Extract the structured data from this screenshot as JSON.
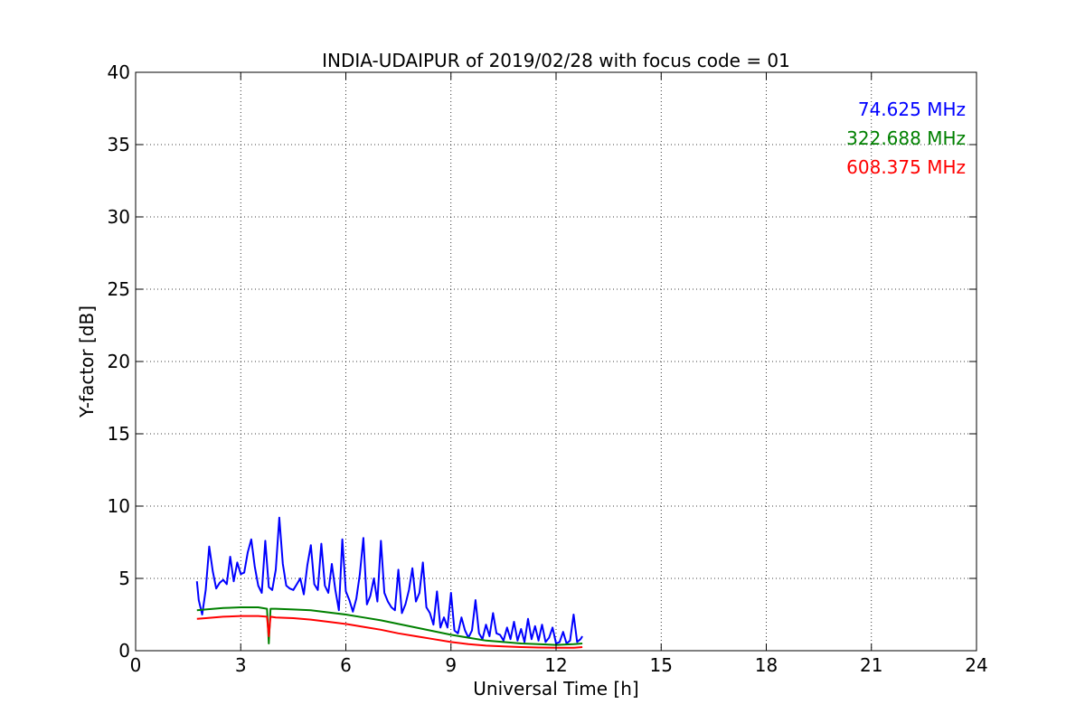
{
  "chart_data": {
    "type": "line",
    "title": "INDIA-UDAIPUR of 2019/02/28 with focus code = 01",
    "xlabel": "Universal Time [h]",
    "ylabel": "Y-factor [dB]",
    "xlim": [
      0,
      24
    ],
    "ylim": [
      0,
      40
    ],
    "xticks": [
      0,
      3,
      6,
      9,
      12,
      15,
      18,
      21,
      24
    ],
    "yticks": [
      0,
      5,
      10,
      15,
      20,
      25,
      30,
      35,
      40
    ],
    "grid": true,
    "legend_position": "top-right",
    "series": [
      {
        "name": "74.625 MHz",
        "color": "#0000ff",
        "x": [
          1.75,
          1.8,
          1.9,
          2.0,
          2.1,
          2.2,
          2.3,
          2.4,
          2.5,
          2.6,
          2.7,
          2.8,
          2.9,
          3.0,
          3.1,
          3.2,
          3.3,
          3.4,
          3.5,
          3.6,
          3.7,
          3.8,
          3.9,
          4.0,
          4.1,
          4.2,
          4.3,
          4.4,
          4.5,
          4.6,
          4.7,
          4.8,
          4.9,
          5.0,
          5.1,
          5.2,
          5.3,
          5.4,
          5.5,
          5.6,
          5.7,
          5.8,
          5.9,
          6.0,
          6.1,
          6.2,
          6.3,
          6.4,
          6.5,
          6.6,
          6.7,
          6.8,
          6.9,
          7.0,
          7.1,
          7.2,
          7.3,
          7.4,
          7.5,
          7.6,
          7.7,
          7.8,
          7.9,
          8.0,
          8.1,
          8.2,
          8.3,
          8.4,
          8.5,
          8.6,
          8.7,
          8.8,
          8.9,
          9.0,
          9.1,
          9.2,
          9.3,
          9.4,
          9.5,
          9.6,
          9.7,
          9.8,
          9.9,
          10.0,
          10.1,
          10.2,
          10.3,
          10.4,
          10.5,
          10.6,
          10.7,
          10.8,
          10.9,
          11.0,
          11.1,
          11.2,
          11.3,
          11.4,
          11.5,
          11.6,
          11.7,
          11.8,
          11.9,
          12.0,
          12.1,
          12.2,
          12.3,
          12.4,
          12.5,
          12.6,
          12.7,
          12.75
        ],
        "values": [
          4.8,
          3.5,
          2.5,
          4.2,
          7.2,
          5.5,
          4.3,
          4.7,
          4.9,
          4.6,
          6.5,
          4.8,
          6.1,
          5.3,
          5.4,
          6.8,
          7.7,
          5.8,
          4.5,
          4.0,
          7.6,
          4.4,
          4.2,
          5.6,
          9.2,
          6.0,
          4.5,
          4.3,
          4.2,
          4.6,
          5.0,
          3.9,
          5.9,
          7.3,
          4.6,
          4.2,
          7.4,
          4.5,
          4.0,
          6.0,
          4.2,
          2.8,
          7.7,
          4.1,
          3.5,
          2.7,
          3.6,
          5.3,
          7.8,
          3.2,
          3.8,
          5.0,
          3.4,
          7.6,
          4.0,
          3.4,
          3.0,
          2.8,
          5.6,
          2.6,
          3.2,
          4.2,
          5.7,
          3.4,
          4.0,
          6.1,
          3.0,
          2.6,
          1.8,
          4.1,
          1.6,
          2.3,
          1.6,
          4.0,
          1.4,
          1.2,
          2.3,
          1.4,
          0.9,
          1.4,
          3.5,
          1.2,
          0.8,
          1.8,
          1.0,
          2.6,
          1.2,
          1.1,
          0.7,
          1.6,
          0.8,
          2.0,
          0.7,
          1.5,
          0.6,
          2.2,
          0.8,
          1.7,
          0.7,
          1.8,
          0.6,
          0.9,
          1.6,
          0.5,
          0.6,
          1.3,
          0.5,
          0.7,
          2.5,
          0.6,
          0.8,
          1.0
        ]
      },
      {
        "name": "322.688 MHz",
        "color": "#008000",
        "x": [
          1.75,
          2.0,
          2.5,
          3.0,
          3.5,
          3.75,
          3.8,
          3.85,
          4.0,
          4.5,
          5.0,
          5.5,
          6.0,
          6.5,
          7.0,
          7.5,
          8.0,
          8.5,
          9.0,
          9.5,
          10.0,
          10.5,
          11.0,
          11.5,
          12.0,
          12.5,
          12.75
        ],
        "values": [
          2.8,
          2.85,
          2.95,
          3.0,
          3.0,
          2.9,
          0.5,
          2.9,
          2.9,
          2.85,
          2.8,
          2.65,
          2.5,
          2.3,
          2.1,
          1.85,
          1.6,
          1.35,
          1.1,
          0.9,
          0.7,
          0.6,
          0.5,
          0.45,
          0.4,
          0.45,
          0.5
        ]
      },
      {
        "name": "608.375 MHz",
        "color": "#ff0000",
        "x": [
          1.75,
          2.0,
          2.5,
          3.0,
          3.5,
          3.75,
          3.8,
          3.85,
          4.0,
          4.5,
          5.0,
          5.5,
          6.0,
          6.5,
          7.0,
          7.5,
          8.0,
          8.5,
          9.0,
          9.5,
          10.0,
          10.5,
          11.0,
          11.5,
          12.0,
          12.5,
          12.75
        ],
        "values": [
          2.2,
          2.25,
          2.35,
          2.4,
          2.4,
          2.35,
          1.0,
          2.35,
          2.3,
          2.25,
          2.15,
          2.0,
          1.85,
          1.65,
          1.45,
          1.2,
          1.0,
          0.8,
          0.6,
          0.45,
          0.35,
          0.3,
          0.25,
          0.22,
          0.2,
          0.2,
          0.25
        ]
      }
    ]
  }
}
